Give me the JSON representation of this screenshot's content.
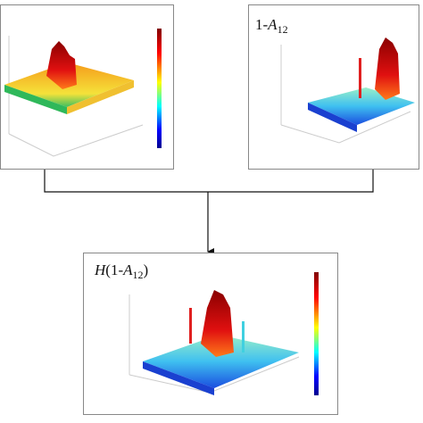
{
  "panels": [
    {
      "label": null
    },
    {
      "label": {
        "prefix": "1-",
        "var": "A",
        "sub": "12"
      }
    },
    {
      "label": {
        "func": "H",
        "open": "(1-",
        "var": "A",
        "sub": "12",
        "close": ")"
      }
    }
  ]
}
